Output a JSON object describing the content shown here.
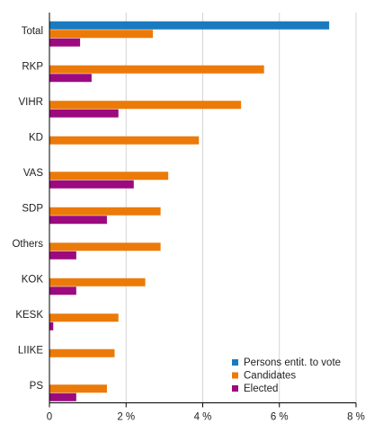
{
  "chart_data": {
    "type": "bar",
    "orientation": "horizontal",
    "title": "",
    "xlabel": "",
    "ylabel": "",
    "categories": [
      "Total",
      "RKP",
      "VIHR",
      "KD",
      "VAS",
      "SDP",
      "Others",
      "KOK",
      "KESK",
      "LIIKE",
      "PS"
    ],
    "series": [
      {
        "name": "Persons entit. to vote",
        "color": "#1a7abf",
        "values": [
          7.3,
          null,
          null,
          null,
          null,
          null,
          null,
          null,
          null,
          null,
          null
        ]
      },
      {
        "name": "Candidates",
        "color": "#ec7a08",
        "values": [
          2.7,
          5.6,
          5.0,
          3.9,
          3.1,
          2.9,
          2.9,
          2.5,
          1.8,
          1.7,
          1.5
        ]
      },
      {
        "name": "Elected",
        "color": "#9c0a7f",
        "values": [
          0.8,
          1.1,
          1.8,
          0.0,
          2.2,
          1.5,
          0.7,
          0.7,
          0.1,
          0.0,
          0.7
        ]
      }
    ],
    "xlim": [
      0,
      8
    ],
    "xticks": [
      0,
      2,
      4,
      6,
      8
    ],
    "xtick_labels": [
      "0",
      "2 %",
      "4 %",
      "6 %",
      "8 %"
    ],
    "grid": "vertical",
    "legend_position": "bottom-right"
  }
}
